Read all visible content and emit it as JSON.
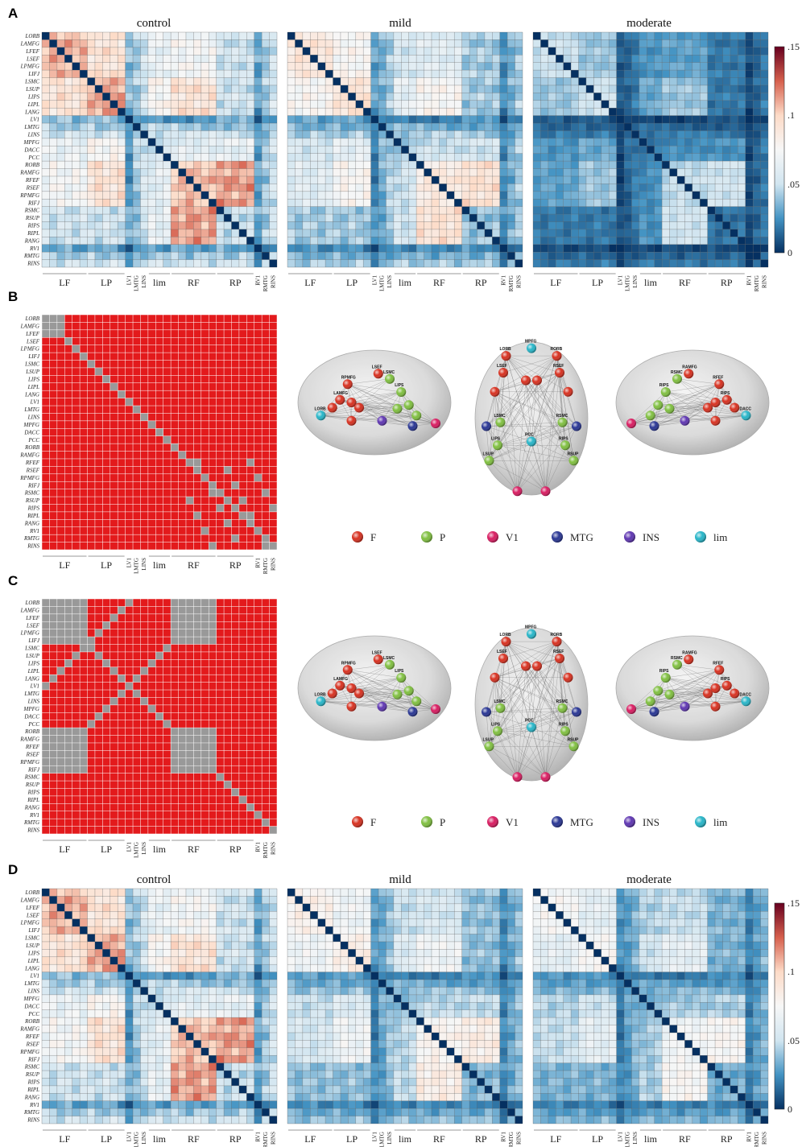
{
  "panels": {
    "A": {
      "letter": "A",
      "titles": [
        "control",
        "mild",
        "moderate"
      ]
    },
    "B": {
      "letter": "B"
    },
    "C": {
      "letter": "C"
    },
    "D": {
      "letter": "D",
      "titles": [
        "control",
        "mild",
        "moderate"
      ]
    }
  },
  "regions": [
    "LORB",
    "LAMFG",
    "LFEF",
    "LSEF",
    "LPMFG",
    "LIFJ",
    "LSMC",
    "LSUP",
    "LIPS",
    "LIPL",
    "LANG",
    "LV1",
    "LMTG",
    "LINS",
    "MPFG",
    "DACC",
    "PCC",
    "RORB",
    "RAMFG",
    "RFEF",
    "RSEF",
    "RPMFG",
    "RIFJ",
    "RSMC",
    "RSUP",
    "RIPS",
    "RIPL",
    "RANG",
    "RV1",
    "RMTG",
    "RINS"
  ],
  "groups": [
    {
      "label": "LF",
      "start": 0,
      "end": 5,
      "small": false
    },
    {
      "label": "LP",
      "start": 6,
      "end": 10,
      "small": false
    },
    {
      "label": "LV1",
      "start": 11,
      "end": 11,
      "small": true
    },
    {
      "label": "LMTG",
      "start": 12,
      "end": 12,
      "small": true
    },
    {
      "label": "LINS",
      "start": 13,
      "end": 13,
      "small": true
    },
    {
      "label": "lim",
      "start": 14,
      "end": 16,
      "small": false
    },
    {
      "label": "RF",
      "start": 17,
      "end": 22,
      "small": false
    },
    {
      "label": "RP",
      "start": 23,
      "end": 27,
      "small": false
    },
    {
      "label": "RV1",
      "start": 28,
      "end": 28,
      "small": true
    },
    {
      "label": "RMTG",
      "start": 29,
      "end": 29,
      "small": true
    },
    {
      "label": "RINS",
      "start": 30,
      "end": 30,
      "small": true
    }
  ],
  "colorbar": {
    "ticks": [
      ".15",
      ".1",
      ".05",
      "0"
    ],
    "stops": [
      "#67001f",
      "#d6604d",
      "#fddbc7",
      "#f7f7f7",
      "#d1e5f0",
      "#4393c3",
      "#053061"
    ]
  },
  "legend": [
    {
      "name": "F",
      "color": "#d7301f"
    },
    {
      "name": "P",
      "color": "#7fbf3f"
    },
    {
      "name": "V1",
      "color": "#d81b60"
    },
    {
      "name": "MTG",
      "color": "#283593"
    },
    {
      "name": "INS",
      "color": "#5e35b1"
    },
    {
      "name": "lim",
      "color": "#26b5c8"
    }
  ],
  "brain_labels": [
    "LSMC",
    "LIPS",
    "RSMC",
    "RIPS",
    "MPFG",
    "LSUP",
    "RSUP",
    "RAMFG",
    "LAMFG",
    "RPMFG",
    "RFEF",
    "LSEF",
    "RSEF",
    "LORB",
    "RORB",
    "PCC",
    "DACC"
  ],
  "chart_data": {
    "type": "heatmap",
    "value_range": [
      0,
      0.15
    ],
    "matrices": [
      "control",
      "mild",
      "moderate"
    ],
    "binary_colors": {
      "significant": "#e31a1c",
      "not_significant": "#999999"
    }
  }
}
